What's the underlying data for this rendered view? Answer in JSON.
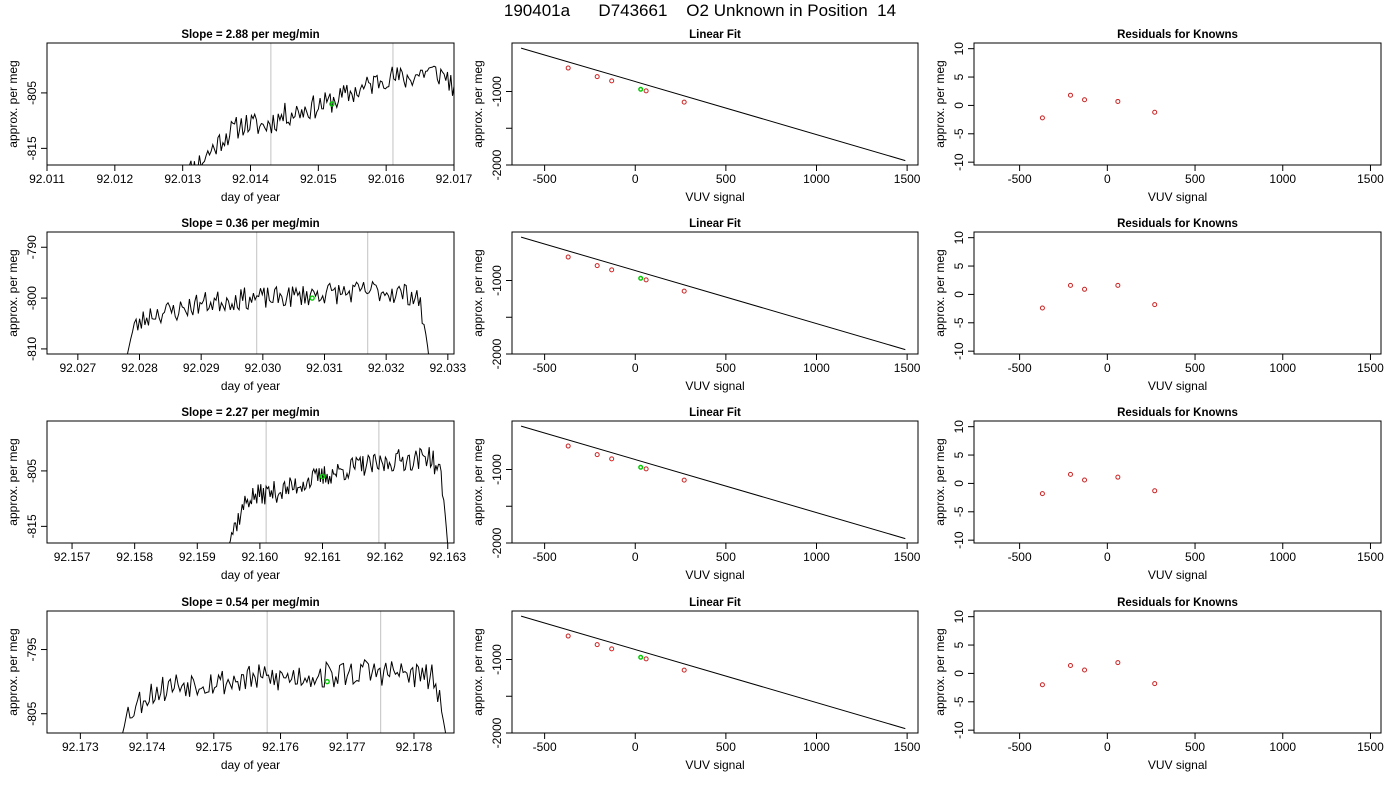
{
  "title": "190401a      D743661    O2 Unknown in Position  14",
  "colors": {
    "trace": "#000000",
    "marker_vline": "#cccccc",
    "current_point": "#00cc00",
    "known_point": "#cc2222",
    "fit_line": "#000000"
  },
  "chart_data": [
    {
      "type": "line",
      "panel": "trace",
      "row": 1,
      "title": "Slope =  2.88  per meg/min",
      "xlabel": "day of year",
      "ylabel": "approx. per meg",
      "xlim": [
        92.011,
        92.017
      ],
      "ylim": [
        -818,
        -796
      ],
      "xticks": [
        92.011,
        92.012,
        92.013,
        92.014,
        92.015,
        92.016,
        92.017
      ],
      "xtick_labels": [
        "92.011",
        "92.012",
        "92.013",
        "92.014",
        "92.015",
        "92.016",
        "92.017"
      ],
      "yticks": [
        -815,
        -805
      ],
      "ytick_labels": [
        "-815",
        "-805"
      ],
      "marker_lines": [
        92.0143,
        92.0161
      ],
      "current_point": {
        "x": 92.0152,
        "y": -807.0
      },
      "trace_start": 92.013,
      "trace_end": 92.0172,
      "trace_points": [
        [
          92.013,
          -820
        ],
        [
          92.0133,
          -817
        ],
        [
          92.0136,
          -813
        ],
        [
          92.0139,
          -810.5
        ],
        [
          92.0142,
          -811
        ],
        [
          92.0145,
          -809
        ],
        [
          92.0148,
          -808
        ],
        [
          92.0151,
          -807
        ],
        [
          92.0154,
          -805.5
        ],
        [
          92.0157,
          -804
        ],
        [
          92.016,
          -802
        ],
        [
          92.0163,
          -802.5
        ],
        [
          92.0166,
          -801
        ],
        [
          92.0169,
          -802
        ],
        [
          92.0171,
          -807
        ],
        [
          92.0172,
          -818
        ]
      ],
      "noise_amp": 2.2,
      "noise_seed": 11
    },
    {
      "type": "line",
      "panel": "fit",
      "row": 1,
      "title": "Linear Fit",
      "xlabel": "VUV signal",
      "ylabel": "approx. per meg",
      "xlim": [
        -680,
        1560
      ],
      "ylim": [
        -2000,
        -340
      ],
      "xticks": [
        -500,
        0,
        500,
        1000,
        1500
      ],
      "xtick_labels": [
        "-500",
        "0",
        "500",
        "1000",
        "1500"
      ],
      "yticks": [
        -1000,
        -1500,
        -2000
      ],
      "ytick_labels": [
        "-1000",
        "",
        "-2000"
      ],
      "fit_line": {
        "x": [
          -630,
          1490
        ],
        "y": [
          -410,
          -1940
        ]
      },
      "known_points": {
        "x": [
          -370,
          -210,
          -130,
          60,
          270
        ],
        "y": [
          -681,
          -797,
          -855,
          -992,
          -1144
        ]
      },
      "unknown_point": {
        "x": 30,
        "y": -970
      }
    },
    {
      "type": "scatter",
      "panel": "residuals",
      "row": 1,
      "title": "Residuals for Knowns",
      "xlabel": "VUV signal",
      "ylabel": "approx. per meg",
      "xlim": [
        -760,
        1560
      ],
      "ylim": [
        -10.5,
        11
      ],
      "xticks": [
        -500,
        0,
        500,
        1000,
        1500
      ],
      "xtick_labels": [
        "-500",
        "0",
        "500",
        "1000",
        "1500"
      ],
      "yticks": [
        -10,
        -5,
        0,
        5,
        10
      ],
      "ytick_labels": [
        "-10",
        "-5",
        "0",
        "5",
        "10"
      ],
      "x": [
        -370,
        -210,
        -130,
        60,
        270
      ],
      "y": [
        -2.2,
        1.8,
        1.0,
        0.7,
        -1.2
      ]
    },
    {
      "type": "line",
      "panel": "trace",
      "row": 2,
      "title": "Slope =  0.36  per meg/min",
      "xlabel": "day of year",
      "ylabel": "approx. per meg",
      "xlim": [
        92.0265,
        92.0331
      ],
      "ylim": [
        -811,
        -787
      ],
      "xticks": [
        92.027,
        92.028,
        92.029,
        92.03,
        92.031,
        92.032,
        92.033
      ],
      "xtick_labels": [
        "92.027",
        "92.028",
        "92.029",
        "92.030",
        "92.031",
        "92.032",
        "92.033"
      ],
      "yticks": [
        -810,
        -800,
        -790
      ],
      "ytick_labels": [
        "-810",
        "-800",
        "-790"
      ],
      "marker_lines": [
        92.0299,
        92.0317
      ],
      "current_point": {
        "x": 92.0308,
        "y": -800.0
      },
      "trace_start": 92.0278,
      "trace_end": 92.0327,
      "trace_points": [
        [
          92.0278,
          -811
        ],
        [
          92.0279,
          -806
        ],
        [
          92.0282,
          -803
        ],
        [
          92.0286,
          -802.5
        ],
        [
          92.029,
          -801
        ],
        [
          92.0294,
          -800.5
        ],
        [
          92.0298,
          -800
        ],
        [
          92.0302,
          -800
        ],
        [
          92.0306,
          -799.5
        ],
        [
          92.031,
          -799
        ],
        [
          92.0314,
          -799
        ],
        [
          92.0318,
          -798.5
        ],
        [
          92.0322,
          -799
        ],
        [
          92.0325,
          -799.5
        ],
        [
          92.0326,
          -804
        ],
        [
          92.0327,
          -812
        ]
      ],
      "noise_amp": 2.2,
      "noise_seed": 23
    },
    {
      "type": "line",
      "panel": "fit",
      "row": 2,
      "title": "Linear Fit",
      "xlabel": "VUV signal",
      "ylabel": "approx. per meg",
      "xlim": [
        -680,
        1560
      ],
      "ylim": [
        -2000,
        -340
      ],
      "xticks": [
        -500,
        0,
        500,
        1000,
        1500
      ],
      "xtick_labels": [
        "-500",
        "0",
        "500",
        "1000",
        "1500"
      ],
      "yticks": [
        -1000,
        -1500,
        -2000
      ],
      "ytick_labels": [
        "-1000",
        "",
        "-2000"
      ],
      "fit_line": {
        "x": [
          -630,
          1490
        ],
        "y": [
          -410,
          -1940
        ]
      },
      "known_points": {
        "x": [
          -370,
          -210,
          -130,
          60,
          270
        ],
        "y": [
          -681,
          -797,
          -855,
          -992,
          -1144
        ]
      },
      "unknown_point": {
        "x": 30,
        "y": -970
      }
    },
    {
      "type": "scatter",
      "panel": "residuals",
      "row": 2,
      "title": "Residuals for Knowns",
      "xlabel": "VUV signal",
      "ylabel": "approx. per meg",
      "xlim": [
        -760,
        1560
      ],
      "ylim": [
        -10.5,
        11
      ],
      "xticks": [
        -500,
        0,
        500,
        1000,
        1500
      ],
      "xtick_labels": [
        "-500",
        "0",
        "500",
        "1000",
        "1500"
      ],
      "yticks": [
        -10,
        -5,
        0,
        5,
        10
      ],
      "ytick_labels": [
        "-10",
        "-5",
        "0",
        "5",
        "10"
      ],
      "x": [
        -370,
        -210,
        -130,
        60,
        270
      ],
      "y": [
        -2.4,
        1.6,
        0.9,
        1.6,
        -1.8
      ]
    },
    {
      "type": "line",
      "panel": "trace",
      "row": 3,
      "title": "Slope =  2.27  per meg/min",
      "xlabel": "day of year",
      "ylabel": "approx. per meg",
      "xlim": [
        92.1566,
        92.1631
      ],
      "ylim": [
        -818,
        -796
      ],
      "xticks": [
        92.157,
        92.158,
        92.159,
        92.16,
        92.161,
        92.162,
        92.163
      ],
      "xtick_labels": [
        "92.157",
        "92.158",
        "92.159",
        "92.160",
        "92.161",
        "92.162",
        "92.163"
      ],
      "yticks": [
        -815,
        -805
      ],
      "ytick_labels": [
        "-815",
        "-805"
      ],
      "marker_lines": [
        92.1601,
        92.1619
      ],
      "current_point": {
        "x": 92.161,
        "y": -806.0
      },
      "trace_start": 92.1594,
      "trace_end": 92.163,
      "trace_points": [
        [
          92.1594,
          -820
        ],
        [
          92.1596,
          -815
        ],
        [
          92.1598,
          -810
        ],
        [
          92.1601,
          -809
        ],
        [
          92.1604,
          -808.5
        ],
        [
          92.1607,
          -807
        ],
        [
          92.161,
          -806
        ],
        [
          92.1613,
          -805
        ],
        [
          92.1616,
          -804
        ],
        [
          92.1619,
          -804
        ],
        [
          92.1622,
          -803
        ],
        [
          92.1625,
          -803
        ],
        [
          92.1627,
          -802
        ],
        [
          92.1629,
          -806
        ],
        [
          92.163,
          -818
        ]
      ],
      "noise_amp": 2.0,
      "noise_seed": 37
    },
    {
      "type": "line",
      "panel": "fit",
      "row": 3,
      "title": "Linear Fit",
      "xlabel": "VUV signal",
      "ylabel": "approx. per meg",
      "xlim": [
        -680,
        1560
      ],
      "ylim": [
        -2000,
        -340
      ],
      "xticks": [
        -500,
        0,
        500,
        1000,
        1500
      ],
      "xtick_labels": [
        "-500",
        "0",
        "500",
        "1000",
        "1500"
      ],
      "yticks": [
        -1000,
        -1500,
        -2000
      ],
      "ytick_labels": [
        "-1000",
        "",
        "-2000"
      ],
      "fit_line": {
        "x": [
          -630,
          1490
        ],
        "y": [
          -410,
          -1940
        ]
      },
      "known_points": {
        "x": [
          -370,
          -210,
          -130,
          60,
          270
        ],
        "y": [
          -681,
          -797,
          -855,
          -992,
          -1144
        ]
      },
      "unknown_point": {
        "x": 30,
        "y": -970
      }
    },
    {
      "type": "scatter",
      "panel": "residuals",
      "row": 3,
      "title": "Residuals for Knowns",
      "xlabel": "VUV signal",
      "ylabel": "approx. per meg",
      "xlim": [
        -760,
        1560
      ],
      "ylim": [
        -10.5,
        11
      ],
      "xticks": [
        -500,
        0,
        500,
        1000,
        1500
      ],
      "xtick_labels": [
        "-500",
        "0",
        "500",
        "1000",
        "1500"
      ],
      "yticks": [
        -10,
        -5,
        0,
        5,
        10
      ],
      "ytick_labels": [
        "-10",
        "-5",
        "0",
        "5",
        "10"
      ],
      "x": [
        -370,
        -210,
        -130,
        60,
        270
      ],
      "y": [
        -1.8,
        1.6,
        0.6,
        1.1,
        -1.3
      ]
    },
    {
      "type": "line",
      "panel": "trace",
      "row": 4,
      "title": "Slope =  0.54  per meg/min",
      "xlabel": "day of year",
      "ylabel": "approx. per meg",
      "xlim": [
        92.1725,
        92.1786
      ],
      "ylim": [
        -808,
        -789
      ],
      "xticks": [
        92.173,
        92.174,
        92.175,
        92.176,
        92.177,
        92.178
      ],
      "xtick_labels": [
        "92.173",
        "92.174",
        "92.175",
        "92.176",
        "92.177",
        "92.178"
      ],
      "yticks": [
        -805,
        -795
      ],
      "ytick_labels": [
        "-805",
        "-795"
      ],
      "marker_lines": [
        92.1758,
        92.1775
      ],
      "current_point": {
        "x": 92.1767,
        "y": -800.0
      },
      "trace_start": 92.1736,
      "trace_end": 92.1785,
      "trace_points": [
        [
          92.1736,
          -809
        ],
        [
          92.1737,
          -805
        ],
        [
          92.174,
          -802
        ],
        [
          92.1744,
          -800.5
        ],
        [
          92.1748,
          -800
        ],
        [
          92.1752,
          -800
        ],
        [
          92.1756,
          -799.5
        ],
        [
          92.176,
          -799.5
        ],
        [
          92.1764,
          -799
        ],
        [
          92.1768,
          -799
        ],
        [
          92.1772,
          -798.5
        ],
        [
          92.1776,
          -798.5
        ],
        [
          92.178,
          -799
        ],
        [
          92.1783,
          -799.5
        ],
        [
          92.1784,
          -804
        ],
        [
          92.1785,
          -810
        ]
      ],
      "noise_amp": 2.2,
      "noise_seed": 53
    },
    {
      "type": "line",
      "panel": "fit",
      "row": 4,
      "title": "Linear Fit",
      "xlabel": "VUV signal",
      "ylabel": "approx. per meg",
      "xlim": [
        -680,
        1560
      ],
      "ylim": [
        -2000,
        -340
      ],
      "xticks": [
        -500,
        0,
        500,
        1000,
        1500
      ],
      "xtick_labels": [
        "-500",
        "0",
        "500",
        "1000",
        "1500"
      ],
      "yticks": [
        -1000,
        -1500,
        -2000
      ],
      "ytick_labels": [
        "-1000",
        "",
        "-2000"
      ],
      "fit_line": {
        "x": [
          -630,
          1490
        ],
        "y": [
          -410,
          -1940
        ]
      },
      "known_points": {
        "x": [
          -370,
          -210,
          -130,
          60,
          270
        ],
        "y": [
          -681,
          -797,
          -855,
          -992,
          -1144
        ]
      },
      "unknown_point": {
        "x": 30,
        "y": -970
      }
    },
    {
      "type": "scatter",
      "panel": "residuals",
      "row": 4,
      "title": "Residuals for Knowns",
      "xlabel": "VUV signal",
      "ylabel": "approx. per meg",
      "xlim": [
        -760,
        1560
      ],
      "ylim": [
        -10.5,
        11
      ],
      "xticks": [
        -500,
        0,
        500,
        1000,
        1500
      ],
      "xtick_labels": [
        "-500",
        "0",
        "500",
        "1000",
        "1500"
      ],
      "yticks": [
        -10,
        -5,
        0,
        5,
        10
      ],
      "ytick_labels": [
        "-10",
        "-5",
        "0",
        "5",
        "10"
      ],
      "x": [
        -370,
        -210,
        -130,
        60,
        270
      ],
      "y": [
        -2.0,
        1.4,
        0.6,
        1.9,
        -1.8
      ]
    }
  ]
}
